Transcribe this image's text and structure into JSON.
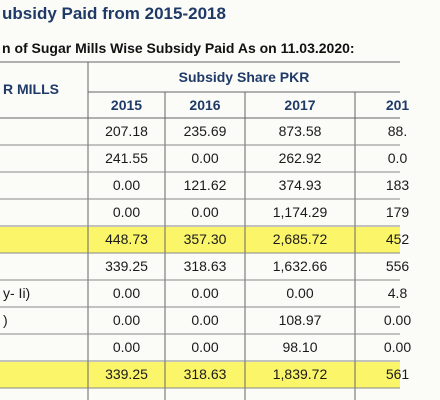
{
  "header": {
    "title": "ubsidy Paid from 2015-2018",
    "subtitle": "n of Sugar Mills Wise Subsidy Paid As on 11.03.2020:"
  },
  "table": {
    "columns": {
      "label": "R MILLS",
      "group": "Subsidy Share PKR",
      "years": [
        "2015",
        "2016",
        "2017",
        "201"
      ]
    },
    "rows": [
      {
        "cells": [
          "207.18",
          "235.69",
          "873.58",
          "88."
        ]
      },
      {
        "cells": [
          "241.55",
          "0.00",
          "262.92",
          "0.0"
        ]
      },
      {
        "cells": [
          "0.00",
          "121.62",
          "374.93",
          "183"
        ]
      },
      {
        "cells": [
          "0.00",
          "0.00",
          "1,174.29",
          "179"
        ]
      },
      {
        "cells": [
          "448.73",
          "357.30",
          "2,685.72",
          "452"
        ],
        "highlight": true
      },
      {
        "cells": [
          "339.25",
          "318.63",
          "1,632.66",
          "556"
        ]
      },
      {
        "label": "y- Ii)",
        "cells": [
          "0.00",
          "0.00",
          "0.00",
          "4.8"
        ]
      },
      {
        "label": ")",
        "cells": [
          "0.00",
          "0.00",
          "108.97",
          "0.00"
        ]
      },
      {
        "cells": [
          "0.00",
          "0.00",
          "98.10",
          "0.00"
        ]
      },
      {
        "cells": [
          "339.25",
          "318.63",
          "1,839.72",
          "561"
        ],
        "highlight": true
      }
    ]
  }
}
